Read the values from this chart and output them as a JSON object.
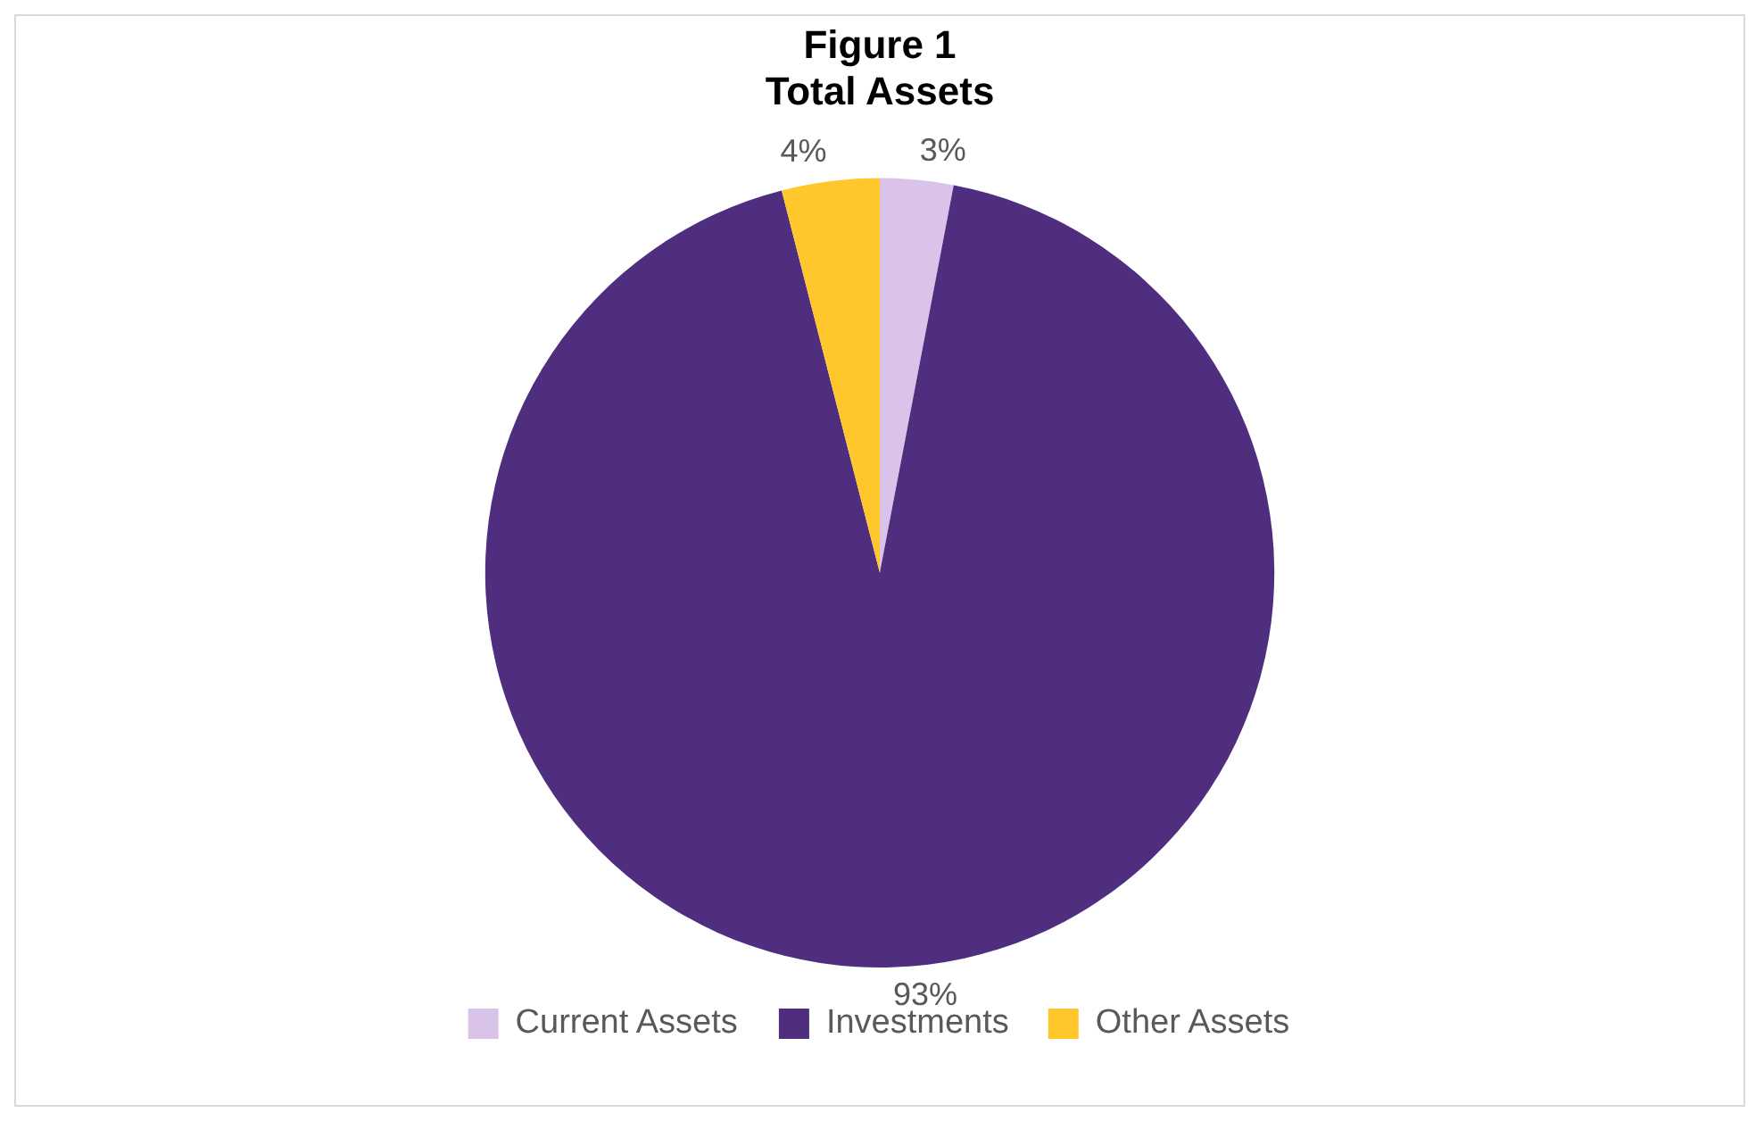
{
  "chart_data": {
    "type": "pie",
    "title": "Figure 1",
    "subtitle": "Total Assets",
    "categories": [
      "Current Assets",
      "Investments",
      "Other Assets"
    ],
    "values": [
      3,
      93,
      4
    ],
    "colors": [
      "#d9c3e9",
      "#4f2d7f",
      "#ffc72c"
    ],
    "value_labels": [
      "3%",
      "93%",
      "4%"
    ],
    "legend": "bottom"
  }
}
